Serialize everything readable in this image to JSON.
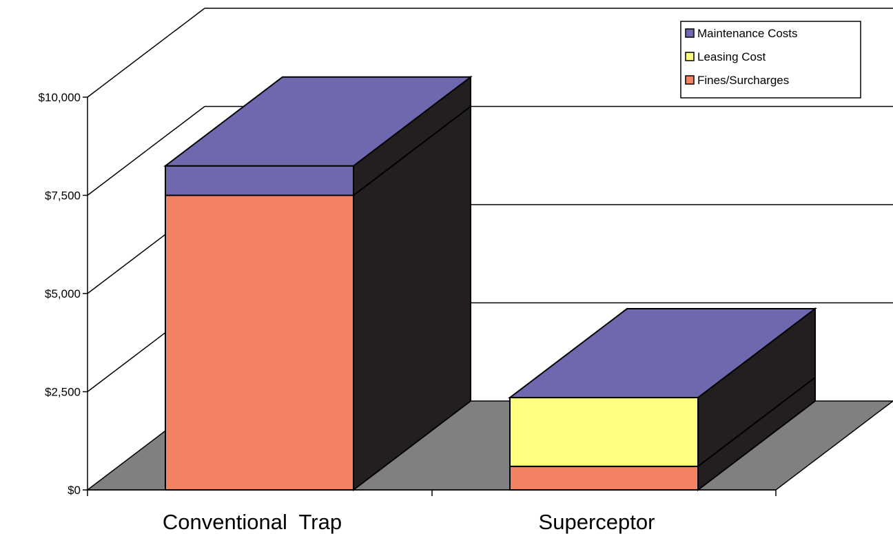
{
  "chart_data": {
    "type": "bar",
    "stacked": true,
    "three_d": true,
    "categories": [
      "Conventional  Trap",
      "Superceptor"
    ],
    "series": [
      {
        "name": "Fines/Surcharges",
        "values": [
          7500,
          600
        ],
        "color": "#f38263"
      },
      {
        "name": "Leasing Cost",
        "values": [
          0,
          1750
        ],
        "color": "#ffff80"
      },
      {
        "name": "Maintenance Costs",
        "values": [
          750,
          0
        ],
        "color": "#6e69ae"
      }
    ],
    "y_ticks": [
      "$0",
      "$2,500",
      "$5,000",
      "$7,500",
      "$10,000"
    ],
    "y_tick_values": [
      0,
      2500,
      5000,
      7500,
      10000
    ],
    "ylim": [
      0,
      12500
    ],
    "grid": true,
    "legend_position": "top-right",
    "legend_order": [
      "Maintenance Costs",
      "Leasing Cost",
      "Fines/Surcharges"
    ],
    "colors": {
      "side": "#231f20",
      "floor": "#808080",
      "background": "#ffffff"
    }
  }
}
